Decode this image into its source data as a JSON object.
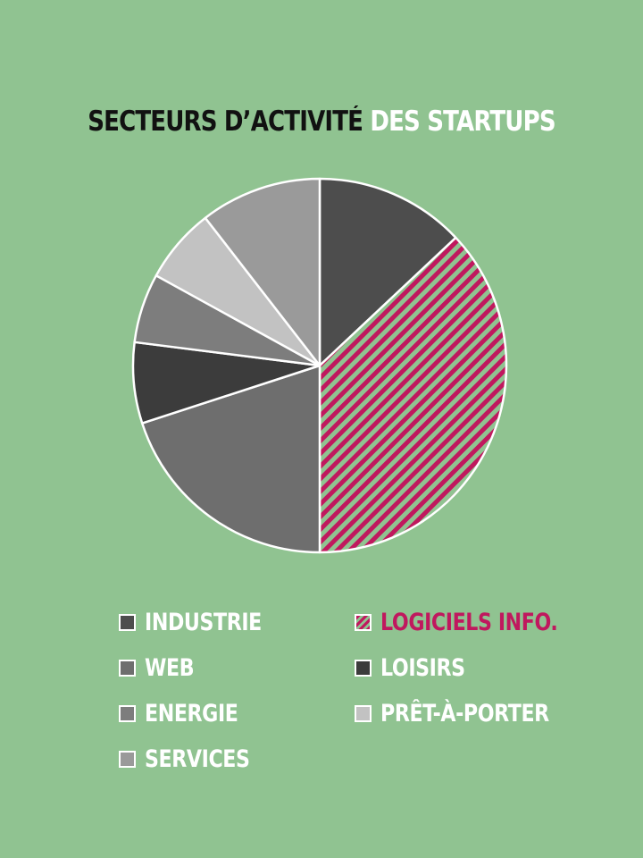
{
  "colors": {
    "background": "#90c391",
    "accent": "#c0185e"
  },
  "chart_data": {
    "type": "pie",
    "title_part1": "SECTEURS D’ACTIVITÉ",
    "title_part2": "DES STARTUPS",
    "start": "12 o'clock, clockwise",
    "slices": [
      {
        "label": "INDUSTRIE",
        "value": 13,
        "color": "#4d4d4d",
        "pattern": "solid"
      },
      {
        "label": "LOGICIELS INFO.",
        "value": 37,
        "color": "#c0185e",
        "pattern": "diagonal-hatch"
      },
      {
        "label": "WEB",
        "value": 20,
        "color": "#6e6e6e",
        "pattern": "solid"
      },
      {
        "label": "LOISIRS",
        "value": 7,
        "color": "#3c3c3c",
        "pattern": "solid"
      },
      {
        "label": "ENERGIE",
        "value": 6,
        "color": "#7d7d7d",
        "pattern": "solid"
      },
      {
        "label": "PRÊT-À-PORTER",
        "value": 6.5,
        "color": "#c2c2c2",
        "pattern": "solid"
      },
      {
        "label": "SERVICES",
        "value": 10.5,
        "color": "#9a9a9a",
        "pattern": "solid"
      }
    ],
    "legend": {
      "placement": "bottom, two columns",
      "left_column": [
        "INDUSTRIE",
        "WEB",
        "ENERGIE",
        "SERVICES"
      ],
      "right_column": [
        "LOGICIELS INFO.",
        "LOISIRS",
        "PRÊT-À-PORTER"
      ]
    }
  }
}
